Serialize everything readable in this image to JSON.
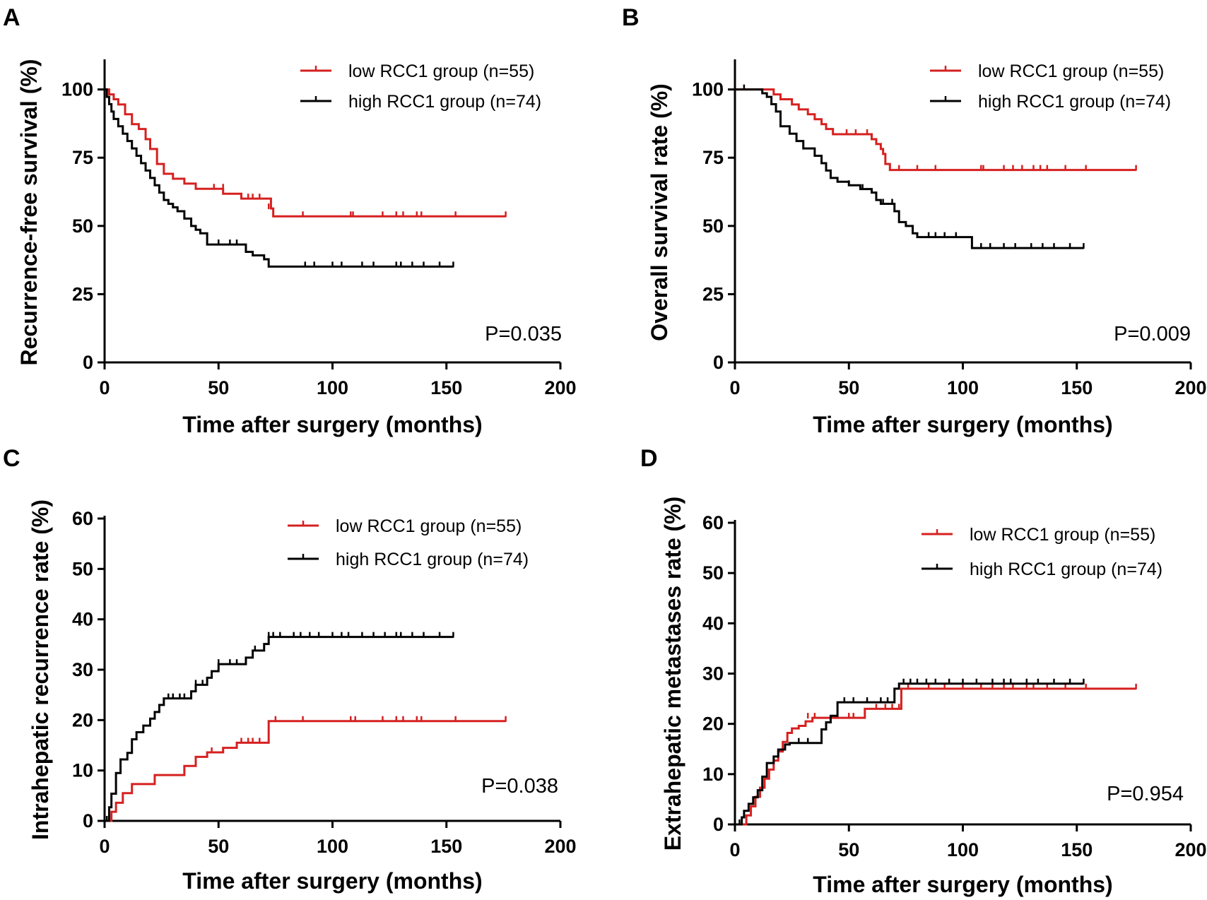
{
  "colors": {
    "low": "#d62020",
    "high": "#000000"
  },
  "chart_data": [
    {
      "type": "line",
      "panel": "A",
      "title": "",
      "xlabel": "Time after surgery (months)",
      "ylabel": "Recurrence-free survival (%)",
      "xlim": [
        0,
        200
      ],
      "ylim": [
        0,
        110
      ],
      "xticks": [
        0,
        50,
        100,
        150,
        200
      ],
      "xtick_labels": [
        "0",
        "50",
        "100",
        "150",
        "200"
      ],
      "yticks": [
        0,
        25,
        50,
        75,
        100
      ],
      "ytick_labels": [
        "0",
        "25",
        "50",
        "75",
        "100"
      ],
      "pvalue": "P=0.035",
      "legend_position": "top-right",
      "series": [
        {
          "name": "low RCC1 group (n=55)",
          "color_key": "low",
          "x": [
            0,
            2,
            4,
            6,
            9,
            12,
            15,
            18,
            20,
            23,
            26,
            30,
            35,
            40,
            45,
            52,
            55,
            60,
            65,
            70,
            73,
            74,
            176
          ],
          "y": [
            100,
            98.2,
            96.4,
            94.5,
            90.9,
            87.3,
            85.5,
            81.8,
            78.2,
            72.7,
            69.1,
            67.3,
            65.5,
            63.6,
            63.6,
            61.8,
            61.8,
            60.0,
            60.0,
            60.0,
            56.4,
            53.5,
            53.5
          ],
          "censored_x": [
            48,
            52,
            60,
            63,
            65,
            68,
            72,
            87,
            108,
            109,
            122,
            128,
            131,
            137,
            139,
            154,
            176
          ],
          "censored_y": [
            63.6,
            63.6,
            60.0,
            60.0,
            60.0,
            60.0,
            56.4,
            53.5,
            53.5,
            53.5,
            53.5,
            53.5,
            53.5,
            53.5,
            53.5,
            53.5,
            53.5
          ]
        },
        {
          "name": "high RCC1 group (n=74)",
          "color_key": "high",
          "x": [
            0,
            1,
            2,
            3,
            4,
            6,
            8,
            10,
            12,
            14,
            16,
            18,
            20,
            22,
            24,
            26,
            28,
            30,
            32,
            35,
            38,
            40,
            42,
            45,
            55,
            62,
            65,
            70,
            72,
            153
          ],
          "y": [
            100,
            97.3,
            94.6,
            91.9,
            89.2,
            86.5,
            83.8,
            81.1,
            78.4,
            75.7,
            73.0,
            70.3,
            67.6,
            64.9,
            62.2,
            59.5,
            58.1,
            56.8,
            55.4,
            52.7,
            50.0,
            48.6,
            47.3,
            43.2,
            43.2,
            40.5,
            39.2,
            37.8,
            35.1,
            35.1
          ],
          "censored_x": [
            50,
            55,
            58,
            62,
            88,
            92,
            100,
            104,
            113,
            118,
            128,
            130,
            135,
            140,
            147,
            153
          ],
          "censored_y": [
            43.2,
            43.2,
            43.2,
            40.5,
            35.1,
            35.1,
            35.1,
            35.1,
            35.1,
            35.1,
            35.1,
            35.1,
            35.1,
            35.1,
            35.1,
            35.1
          ]
        }
      ]
    },
    {
      "type": "line",
      "panel": "B",
      "title": "",
      "xlabel": "Time after surgery (months)",
      "ylabel": "Overall survival rate (%)",
      "xlim": [
        0,
        200
      ],
      "ylim": [
        0,
        110
      ],
      "xticks": [
        0,
        50,
        100,
        150,
        200
      ],
      "xtick_labels": [
        "0",
        "50",
        "100",
        "150",
        "200"
      ],
      "yticks": [
        0,
        25,
        50,
        75,
        100
      ],
      "ytick_labels": [
        "0",
        "25",
        "50",
        "75",
        "100"
      ],
      "pvalue": "P=0.009",
      "legend_position": "top-right",
      "series": [
        {
          "name": "low RCC1 group (n=55)",
          "color_key": "low",
          "x": [
            0,
            17,
            20,
            25,
            28,
            32,
            35,
            38,
            40,
            43,
            45,
            47,
            60,
            62,
            64,
            65,
            66,
            68,
            176
          ],
          "y": [
            100,
            98.2,
            96.4,
            94.5,
            92.7,
            90.9,
            89.1,
            87.3,
            85.5,
            83.6,
            83.6,
            83.6,
            81.8,
            80.0,
            78.2,
            76.4,
            72.7,
            70.5,
            70.5
          ],
          "censored_x": [
            49,
            53,
            58,
            72,
            80,
            88,
            108,
            109,
            118,
            122,
            126,
            131,
            134,
            137,
            145,
            154,
            176
          ],
          "censored_y": [
            83.6,
            83.6,
            83.6,
            70.5,
            70.5,
            70.5,
            70.5,
            70.5,
            70.5,
            70.5,
            70.5,
            70.5,
            70.5,
            70.5,
            70.5,
            70.5,
            70.5
          ]
        },
        {
          "name": "high RCC1 group (n=74)",
          "color_key": "high",
          "x": [
            0,
            12,
            14,
            16,
            18,
            20,
            24,
            27,
            30,
            35,
            38,
            40,
            42,
            45,
            50,
            55,
            60,
            62,
            64,
            70,
            72,
            75,
            78,
            80,
            90,
            104,
            153
          ],
          "y": [
            100,
            98.6,
            97.3,
            94.6,
            91.9,
            86.5,
            83.8,
            81.1,
            78.4,
            75.7,
            73.0,
            70.3,
            67.6,
            66.2,
            64.9,
            63.5,
            62.2,
            59.5,
            58.1,
            55.4,
            51.4,
            50.0,
            47.3,
            45.9,
            45.9,
            41.9,
            41.9
          ],
          "censored_x": [
            4,
            50,
            56,
            65,
            69,
            85,
            88,
            92,
            97,
            108,
            112,
            118,
            123,
            130,
            135,
            140,
            147,
            153
          ],
          "censored_y": [
            100,
            64.9,
            63.5,
            58.1,
            58.1,
            45.9,
            45.9,
            45.9,
            45.9,
            41.9,
            41.9,
            41.9,
            41.9,
            41.9,
            41.9,
            41.9,
            41.9,
            41.9
          ]
        }
      ]
    },
    {
      "type": "line",
      "panel": "C",
      "title": "",
      "xlabel": "Time after surgery (months)",
      "ylabel": "Intrahepatic recurrence rate (%)",
      "xlim": [
        0,
        200
      ],
      "ylim": [
        0,
        60
      ],
      "xticks": [
        0,
        50,
        100,
        150,
        200
      ],
      "xtick_labels": [
        "0",
        "50",
        "100",
        "150",
        "200"
      ],
      "yticks": [
        0,
        10,
        20,
        30,
        40,
        50,
        60
      ],
      "ytick_labels": [
        "0",
        "10",
        "20",
        "30",
        "40",
        "50",
        "60"
      ],
      "pvalue": "P=0.038",
      "legend_position": "top-right",
      "series": [
        {
          "name": "low RCC1 group (n=55)",
          "color_key": "low",
          "x": [
            0,
            3,
            5,
            8,
            12,
            18,
            22,
            26,
            35,
            40,
            45,
            52,
            58,
            62,
            65,
            72,
            176
          ],
          "y": [
            0,
            1.8,
            3.6,
            5.5,
            7.3,
            7.3,
            9.1,
            9.1,
            10.9,
            12.7,
            13.6,
            14.5,
            15.5,
            15.5,
            15.5,
            19.8,
            19.8
          ],
          "censored_x": [
            47,
            52,
            60,
            63,
            65,
            68,
            75,
            87,
            108,
            110,
            122,
            128,
            131,
            137,
            139,
            154,
            176
          ],
          "censored_y": [
            13.6,
            13.6,
            15.5,
            15.5,
            15.5,
            15.5,
            19.8,
            19.8,
            19.8,
            19.8,
            19.8,
            19.8,
            19.8,
            19.8,
            19.8,
            19.8,
            19.8
          ]
        },
        {
          "name": "high RCC1 group (n=74)",
          "color_key": "high",
          "x": [
            0,
            2,
            3,
            5,
            7,
            10,
            12,
            14,
            17,
            20,
            22,
            24,
            26,
            30,
            35,
            38,
            40,
            45,
            47,
            50,
            55,
            62,
            65,
            70,
            72,
            153
          ],
          "y": [
            0,
            2.7,
            5.4,
            9.5,
            12.2,
            13.5,
            16.2,
            17.6,
            18.9,
            20.3,
            21.6,
            23.0,
            24.3,
            24.3,
            24.3,
            25.7,
            27.0,
            28.4,
            29.7,
            31.1,
            31.1,
            32.4,
            33.8,
            35.1,
            36.5,
            36.5
          ],
          "censored_x": [
            1,
            28,
            30,
            33,
            35,
            40,
            43,
            50,
            55,
            58,
            62,
            66,
            72,
            74,
            77,
            83,
            86,
            90,
            94,
            100,
            104,
            107,
            113,
            118,
            123,
            128,
            130,
            135,
            140,
            147,
            153
          ],
          "censored_y": [
            0,
            24.3,
            24.3,
            24.3,
            24.3,
            27.0,
            27.0,
            31.1,
            31.1,
            31.1,
            31.1,
            33.8,
            36.5,
            36.5,
            36.5,
            36.5,
            36.5,
            36.5,
            36.5,
            36.5,
            36.5,
            36.5,
            36.5,
            36.5,
            36.5,
            36.5,
            36.5,
            36.5,
            36.5,
            36.5,
            36.5
          ]
        }
      ]
    },
    {
      "type": "line",
      "panel": "D",
      "title": "",
      "xlabel": "Time after surgery (months)",
      "ylabel": "Extrahepatic metastases rate (%)",
      "xlim": [
        0,
        200
      ],
      "ylim": [
        0,
        60
      ],
      "xticks": [
        0,
        50,
        100,
        150,
        200
      ],
      "xtick_labels": [
        "0",
        "50",
        "100",
        "150",
        "200"
      ],
      "yticks": [
        0,
        10,
        20,
        30,
        40,
        50,
        60
      ],
      "ytick_labels": [
        "0",
        "10",
        "20",
        "30",
        "40",
        "50",
        "60"
      ],
      "pvalue": "P=0.954",
      "legend_position": "top-right",
      "series": [
        {
          "name": "low RCC1 group (n=55)",
          "color_key": "low",
          "x": [
            0,
            5,
            7,
            9,
            11,
            13,
            15,
            17,
            19,
            21,
            23,
            25,
            28,
            31,
            34,
            40,
            45,
            57,
            60,
            65,
            73,
            176
          ],
          "y": [
            0,
            1.8,
            3.6,
            5.5,
            7.3,
            9.1,
            10.9,
            12.7,
            14.5,
            16.4,
            18.2,
            19.1,
            19.6,
            20.5,
            21.2,
            21.2,
            21.2,
            23.0,
            23.0,
            23.0,
            27.0,
            27.0
          ],
          "censored_x": [
            32,
            35,
            50,
            52,
            62,
            66,
            69,
            72,
            76,
            85,
            92,
            100,
            108,
            113,
            118,
            122,
            128,
            131,
            137,
            145,
            154,
            176
          ],
          "censored_y": [
            21.2,
            21.2,
            21.2,
            21.2,
            23.0,
            23.0,
            23.0,
            23.0,
            27.0,
            27.0,
            27.0,
            27.0,
            27.0,
            27.0,
            27.0,
            27.0,
            27.0,
            27.0,
            27.0,
            27.0,
            27.0,
            27.0
          ]
        },
        {
          "name": "high RCC1 group (n=74)",
          "color_key": "high",
          "x": [
            0,
            3,
            4,
            6,
            8,
            10,
            12,
            14,
            17,
            19,
            22,
            24,
            36,
            38,
            40,
            42,
            45,
            55,
            60,
            65,
            70,
            72,
            153
          ],
          "y": [
            0,
            1.4,
            2.7,
            4.1,
            5.4,
            6.8,
            9.5,
            12.2,
            13.5,
            14.9,
            15.9,
            16.2,
            16.2,
            18.9,
            20.3,
            21.6,
            24.3,
            24.3,
            24.3,
            24.3,
            27.0,
            28.0,
            28.0
          ],
          "censored_x": [
            2,
            28,
            32,
            48,
            52,
            58,
            64,
            67,
            74,
            77,
            80,
            84,
            88,
            94,
            100,
            106,
            113,
            118,
            121,
            128,
            133,
            140,
            147,
            153
          ],
          "censored_y": [
            0,
            16.2,
            16.2,
            24.3,
            24.3,
            24.3,
            24.3,
            24.3,
            28.0,
            28.0,
            28.0,
            28.0,
            28.0,
            28.0,
            28.0,
            28.0,
            28.0,
            28.0,
            28.0,
            28.0,
            28.0,
            28.0,
            28.0,
            28.0
          ]
        }
      ]
    }
  ]
}
